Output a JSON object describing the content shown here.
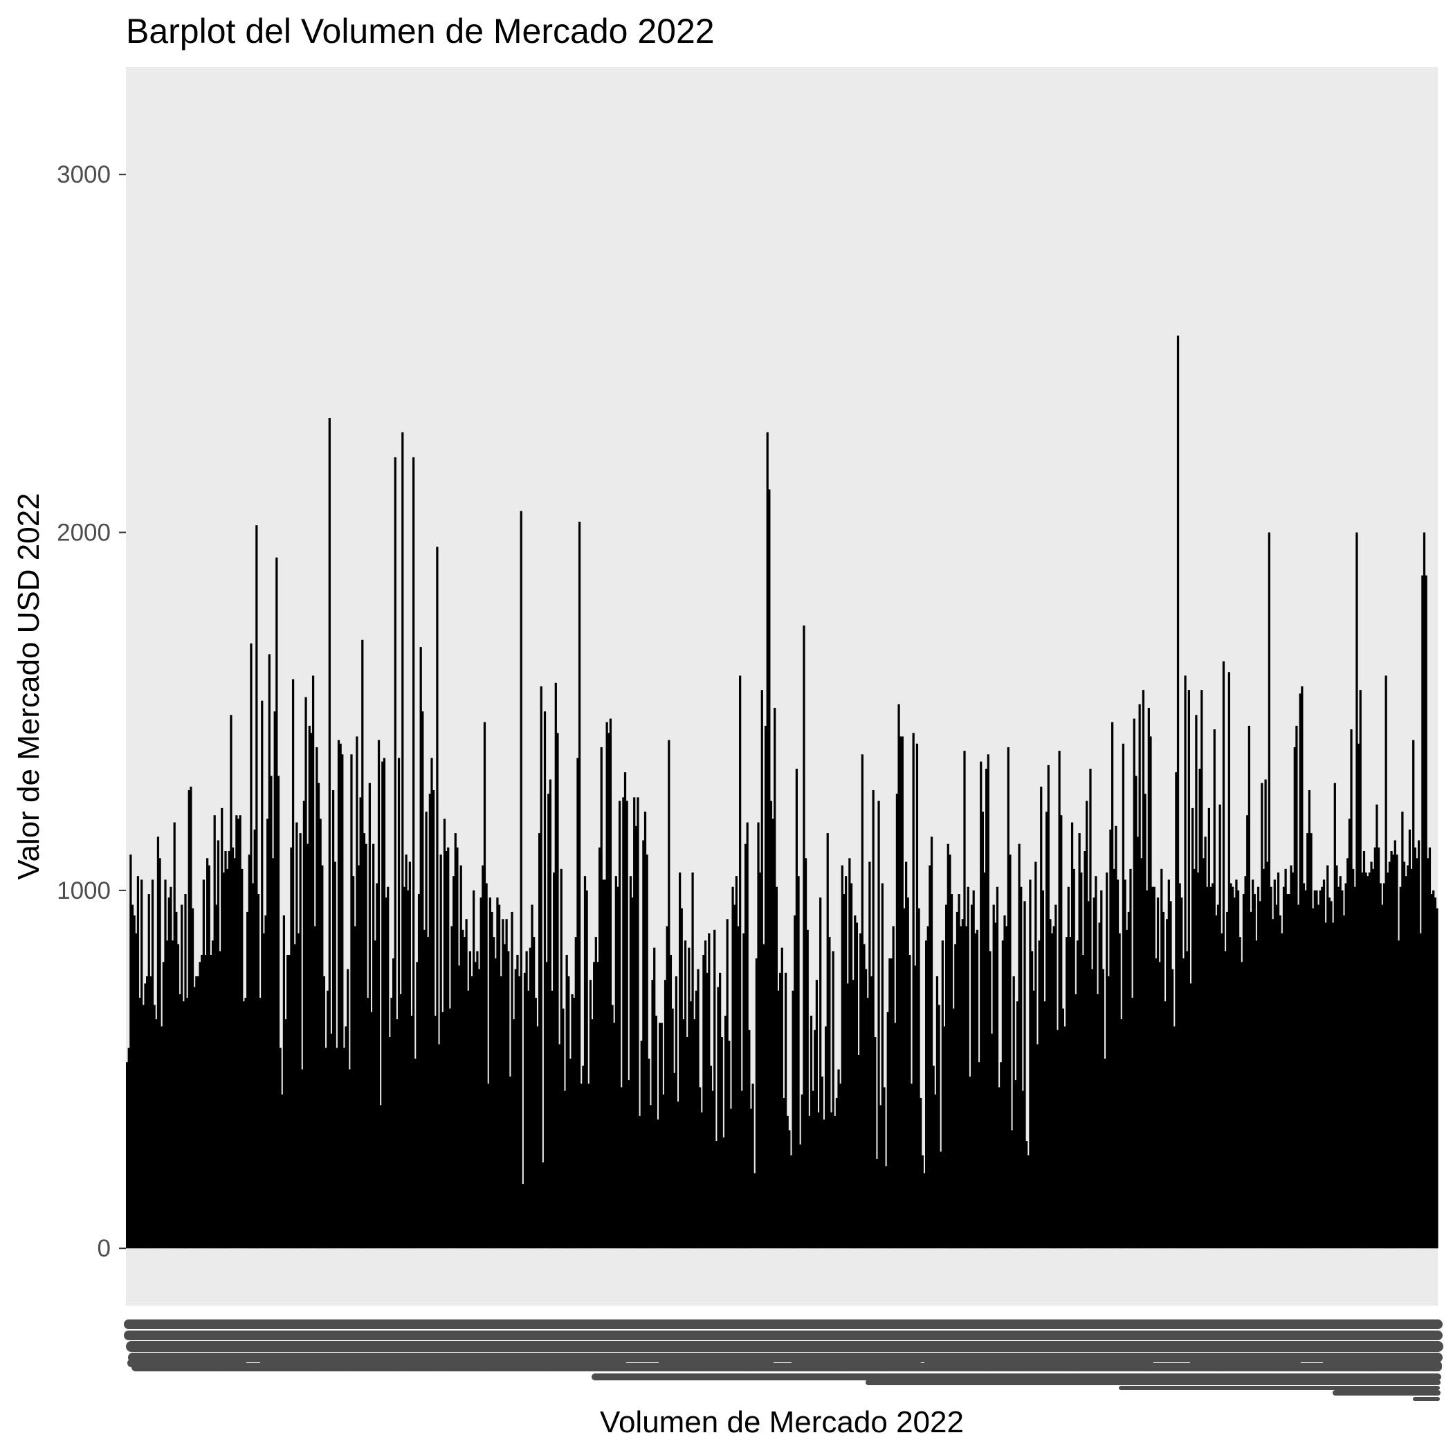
{
  "chart_data": {
    "type": "bar",
    "title": "Barplot del Volumen de Mercado 2022",
    "xlabel": "Volumen de Mercado 2022",
    "ylabel": "Valor de Mercado USD 2022",
    "yticks": [
      0,
      1000,
      2000,
      3000
    ],
    "ylim": [
      -160,
      3300
    ],
    "grid": false,
    "legend": "none",
    "colors": {
      "panel": "#ebebeb",
      "bar": "#000000",
      "tick_text": "#4d4d4d",
      "text": "#000000",
      "axis_clutter": "#4d4d4d"
    },
    "series": [
      {
        "values": [
          520,
          560,
          1100,
          960,
          930,
          880,
          1040,
          700,
          1030,
          680,
          740,
          760,
          990,
          760,
          1030,
          680,
          640,
          1150,
          1090,
          620,
          800,
          1030,
          860,
          980,
          1010,
          860,
          1190,
          940,
          850,
          710,
          960,
          690,
          990,
          700,
          1280,
          1290,
          950,
          730,
          760,
          760,
          800,
          820,
          1030,
          820,
          1090,
          1070,
          820,
          860,
          1210,
          960,
          1140,
          830,
          1230,
          1050,
          1110,
          1060,
          1110,
          1490,
          1120,
          1090,
          1210,
          1200,
          1210,
          1060,
          690,
          700,
          940,
          1100,
          1690,
          1020,
          1170,
          2020,
          990,
          700,
          1530,
          880,
          930,
          1200,
          1660,
          1320,
          1090,
          1500,
          1930,
          1320,
          560,
          430,
          930,
          640,
          820,
          820,
          1120,
          1590,
          850,
          1190,
          880,
          1160,
          500,
          1250,
          1540,
          1130,
          1460,
          1440,
          1600,
          900,
          1400,
          1300,
          1200,
          1070,
          760,
          560,
          720,
          2320,
          600,
          1280,
          1080,
          560,
          1420,
          1410,
          1380,
          560,
          620,
          780,
          500,
          1380,
          1040,
          900,
          1430,
          1070,
          1260,
          1700,
          1160,
          1130,
          700,
          1300,
          660,
          1130,
          860,
          1020,
          1420,
          400,
          1360,
          1370,
          980,
          1010,
          590,
          700,
          810,
          2210,
          640,
          1370,
          710,
          2280,
          1010,
          1100,
          1000,
          1080,
          650,
          2210,
          530,
          800,
          990,
          1680,
          1500,
          890,
          1220,
          870,
          1270,
          1370,
          1280,
          650,
          1960,
          570,
          1100,
          660,
          1200,
          1110,
          1120,
          670,
          900,
          1040,
          1160,
          1120,
          790,
          1070,
          890,
          870,
          920,
          720,
          830,
          760,
          1000,
          800,
          830,
          780,
          980,
          1070,
          1470,
          1020,
          460,
          980,
          940,
          870,
          810,
          980,
          960,
          760,
          920,
          850,
          920,
          830,
          480,
          940,
          640,
          780,
          820,
          760,
          2060,
          180,
          770,
          830,
          720,
          840,
          960,
          870,
          700,
          620,
          1160,
          1570,
          240,
          1500,
          800,
          1270,
          1310,
          720,
          1050,
          1580,
          1440,
          570,
          1060,
          670,
          440,
          820,
          760,
          530,
          710,
          700,
          870,
          1370,
          2030,
          460,
          510,
          1040,
          1000,
          460,
          750,
          640,
          800,
          870,
          800,
          1120,
          1400,
          1030,
          1030,
          1470,
          1440,
          1480,
          680,
          630,
          1040,
          1010,
          1250,
          450,
          1260,
          1330,
          1250,
          470,
          1040,
          980,
          1260,
          1180,
          1260,
          370,
          580,
          1140,
          1220,
          1100,
          530,
          400,
          750,
          840,
          650,
          360,
          630,
          630,
          430,
          750,
          900,
          1420,
          820,
          670,
          490,
          760,
          410,
          1050,
          950,
          640,
          860,
          590,
          840,
          690,
          1050,
          640,
          720,
          780,
          450,
          380,
          820,
          860,
          770,
          880,
          510,
          440,
          890,
          300,
          730,
          770,
          590,
          310,
          650,
          920,
          580,
          390,
          1010,
          960,
          1040,
          900,
          1600,
          440,
          880,
          1130,
          1190,
          610,
          390,
          460,
          210,
          810,
          1190,
          1050,
          1560,
          850,
          1460,
          2280,
          2120,
          1250,
          1200,
          1510,
          1010,
          720,
          770,
          840,
          420,
          770,
          370,
          330,
          260,
          720,
          930,
          1340,
          1040,
          290,
          430,
          1740,
          1090,
          890,
          370,
          650,
          440,
          610,
          750,
          380,
          980,
          480,
          360,
          620,
          1160,
          870,
          380,
          830,
          370,
          420,
          500,
          460,
          1070,
          990,
          1040,
          740,
          1090,
          1020,
          750,
          930,
          910,
          540,
          880,
          1380,
          850,
          780,
          700,
          1080,
          760,
          1280,
          590,
          250,
          1250,
          400,
          1020,
          450,
          230,
          660,
          810,
          810,
          900,
          630,
          1270,
          1520,
          1430,
          1430,
          950,
          1080,
          980,
          820,
          460,
          1440,
          790,
          1410,
          950,
          420,
          260,
          210,
          860,
          900,
          1070,
          1150,
          510,
          430,
          760,
          680,
          270,
          860,
          620,
          960,
          1130,
          1100,
          990,
          670,
          850,
          940,
          990,
          900,
          920,
          1390,
          900,
          1010,
          480,
          960,
          1000,
          880,
          890,
          520,
          1360,
          1220,
          1050,
          1340,
          1380,
          830,
          600,
          960,
          910,
          1010,
          450,
          520,
          860,
          930,
          900,
          1400,
          1100,
          330,
          760,
          470,
          690,
          1130,
          1010,
          440,
          970,
          300,
          260,
          1030,
          830,
          720,
          1080,
          570,
          860,
          1290,
          1000,
          690,
          1220,
          1350,
          920,
          880,
          900,
          960,
          610,
          1390,
          1210,
          670,
          620,
          870,
          1010,
          870,
          1190,
          1060,
          710,
          860,
          1160,
          1050,
          820,
          1110,
          1250,
          970,
          1340,
          780,
          980,
          1040,
          710,
          910,
          1000,
          780,
          530,
          1050,
          760,
          1170,
          1470,
          1060,
          1180,
          1030,
          880,
          640,
          1410,
          1030,
          890,
          940,
          1060,
          700,
          1480,
          1320,
          1150,
          1520,
          1090,
          1560,
          1270,
          1000,
          1510,
          1430,
          1010,
          1010,
          810,
          980,
          800,
          1060,
          940,
          690,
          920,
          1030,
          970,
          780,
          620,
          1330,
          2550,
          1020,
          980,
          810,
          1600,
          830,
          1560,
          740,
          1230,
          1060,
          1490,
          1050,
          1340,
          1560,
          1090,
          1150,
          1010,
          1230,
          1010,
          1020,
          1450,
          930,
          960,
          1240,
          880,
          1640,
          830,
          940,
          1610,
          1020,
          1010,
          980,
          1030,
          1000,
          870,
          800,
          990,
          1040,
          1210,
          1460,
          940,
          1030,
          990,
          860,
          1010,
          970,
          1300,
          1060,
          1310,
          1080,
          2000,
          1010,
          920,
          1030,
          960,
          1050,
          930,
          880,
          1010,
          1060,
          990,
          990,
          1070,
          1050,
          1400,
          1460,
          960,
          1550,
          1570,
          1020,
          1000,
          1160,
          1280,
          1160,
          950,
          1000,
          1000,
          960,
          1000,
          1010,
          1030,
          910,
          1070,
          980,
          970,
          910,
          1300,
          1070,
          1010,
          1040,
          1000,
          930,
          1020,
          1090,
          1200,
          1450,
          1060,
          1010,
          2000,
          1410,
          1560,
          1050,
          1110,
          1050,
          1040,
          1050,
          1080,
          1060,
          1120,
          1240,
          1120,
          1020,
          960,
          1020,
          1600,
          1050,
          1080,
          1110,
          1100,
          1140,
          1100,
          860,
          1010,
          1220,
          1080,
          1040,
          1070,
          1170,
          1060,
          1420,
          1120,
          1090,
          1140,
          880,
          1880,
          2000,
          1880,
          1090,
          1120,
          990,
          1000,
          980,
          950
        ]
      }
    ]
  }
}
